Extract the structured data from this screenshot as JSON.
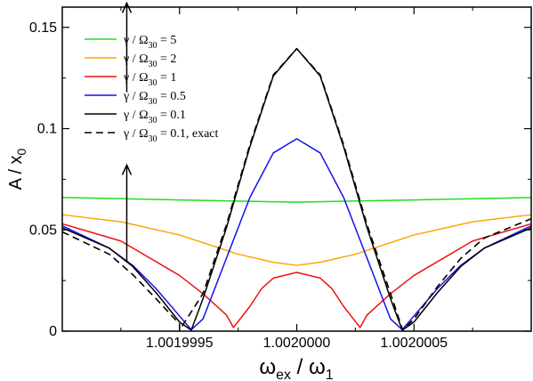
{
  "chart_data": {
    "type": "line",
    "xlabel": {
      "main": "ω",
      "sub": "ex",
      "mid": " / ω",
      "sub2": "1"
    },
    "ylabel": {
      "main": "A / x",
      "sub": "0"
    },
    "xlim": [
      1.001999,
      1.002001
    ],
    "ylim": [
      0,
      0.16
    ],
    "x_ticks": [
      {
        "value": 1.0019995,
        "label": "1.0019995"
      },
      {
        "value": 1.002,
        "label": "1.0020000"
      },
      {
        "value": 1.0020005,
        "label": "1.0020005"
      }
    ],
    "y_ticks": [
      {
        "value": 0,
        "label": "0"
      },
      {
        "value": 0.05,
        "label": "0.05"
      },
      {
        "value": 0.1,
        "label": "0.1"
      },
      {
        "value": 0.15,
        "label": "0.15"
      }
    ],
    "grid": false,
    "legend_position": "top-left",
    "arrows": [
      {
        "x": 1.001999275,
        "y_from": 0.034,
        "y_to": 0.082
      },
      {
        "x": 1.001999275,
        "y_from": 0.118,
        "y_to": 0.162
      }
    ],
    "series": [
      {
        "name": "γ / Ω30 = 5",
        "name_parts": [
          "γ / Ω",
          "30",
          " = 5"
        ],
        "color": "#22dd22",
        "dash": false,
        "points": [
          [
            1.001999,
            0.066
          ],
          [
            1.0019995,
            0.0648
          ],
          [
            1.002,
            0.0637
          ],
          [
            1.0020005,
            0.0648
          ],
          [
            1.002001,
            0.066
          ]
        ]
      },
      {
        "name": "γ / Ω30 = 2",
        "name_parts": [
          "γ / Ω",
          "30",
          " = 2"
        ],
        "color": "#ffa500",
        "dash": false,
        "points": [
          [
            1.001999,
            0.0575
          ],
          [
            1.00199925,
            0.054
          ],
          [
            1.0019995,
            0.0475
          ],
          [
            1.00199975,
            0.038
          ],
          [
            1.0019999,
            0.034
          ],
          [
            1.002,
            0.0325
          ],
          [
            1.0020001,
            0.034
          ],
          [
            1.00200025,
            0.038
          ],
          [
            1.0020005,
            0.0475
          ],
          [
            1.00200075,
            0.054
          ],
          [
            1.002001,
            0.0575
          ]
        ]
      },
      {
        "name": "γ / Ω30 = 1",
        "name_parts": [
          "γ / Ω",
          "30",
          " = 1"
        ],
        "color": "#ee1111",
        "dash": false,
        "points": [
          [
            1.001999,
            0.053
          ],
          [
            1.00199925,
            0.0445
          ],
          [
            1.0019995,
            0.0275
          ],
          [
            1.0019996,
            0.0185
          ],
          [
            1.0019997,
            0.008
          ],
          [
            1.00199973,
            0.0018
          ],
          [
            1.0019998,
            0.0122
          ],
          [
            1.00199985,
            0.021
          ],
          [
            1.0019999,
            0.0262
          ],
          [
            1.002,
            0.029
          ],
          [
            1.0020001,
            0.0262
          ],
          [
            1.00200015,
            0.021
          ],
          [
            1.0020002,
            0.0122
          ],
          [
            1.00200027,
            0.0018
          ],
          [
            1.0020003,
            0.008
          ],
          [
            1.0020004,
            0.0185
          ],
          [
            1.0020005,
            0.0275
          ],
          [
            1.00200075,
            0.0445
          ],
          [
            1.002001,
            0.053
          ]
        ]
      },
      {
        "name": "γ / Ω30 = 0.5",
        "name_parts": [
          "γ / Ω",
          "30",
          " = 0.5"
        ],
        "color": "#1111ee",
        "dash": false,
        "points": [
          [
            1.001999,
            0.052
          ],
          [
            1.0019992,
            0.041
          ],
          [
            1.0019993,
            0.0325
          ],
          [
            1.0019994,
            0.021
          ],
          [
            1.0019995,
            0.0075
          ],
          [
            1.00199955,
            0.0007
          ],
          [
            1.0019996,
            0.006
          ],
          [
            1.0019997,
            0.036
          ],
          [
            1.0019998,
            0.066
          ],
          [
            1.0019999,
            0.088
          ],
          [
            1.002,
            0.095
          ],
          [
            1.0020001,
            0.088
          ],
          [
            1.0020002,
            0.066
          ],
          [
            1.0020003,
            0.036
          ],
          [
            1.0020004,
            0.006
          ],
          [
            1.00200045,
            0.0007
          ],
          [
            1.0020005,
            0.0075
          ],
          [
            1.0020006,
            0.021
          ],
          [
            1.0020007,
            0.0325
          ],
          [
            1.0020008,
            0.041
          ],
          [
            1.002001,
            0.052
          ]
        ]
      },
      {
        "name": "γ / Ω30 = 0.1",
        "name_parts": [
          "γ / Ω",
          "30",
          " = 0.1"
        ],
        "color": "#000000",
        "dash": false,
        "points": [
          [
            1.001999,
            0.051
          ],
          [
            1.0019992,
            0.041
          ],
          [
            1.0019993,
            0.032
          ],
          [
            1.0019994,
            0.019
          ],
          [
            1.0019995,
            0.0045
          ],
          [
            1.00199955,
            0.0005
          ],
          [
            1.0019996,
            0.016
          ],
          [
            1.0019997,
            0.051
          ],
          [
            1.0019998,
            0.091
          ],
          [
            1.0019999,
            0.126
          ],
          [
            1.002,
            0.1395
          ],
          [
            1.0020001,
            0.126
          ],
          [
            1.0020002,
            0.091
          ],
          [
            1.0020003,
            0.051
          ],
          [
            1.0020004,
            0.016
          ],
          [
            1.00200045,
            0.0005
          ],
          [
            1.0020005,
            0.0045
          ],
          [
            1.0020006,
            0.019
          ],
          [
            1.0020007,
            0.032
          ],
          [
            1.0020008,
            0.041
          ],
          [
            1.002001,
            0.051
          ]
        ]
      },
      {
        "name": "γ / Ω30 = 0.1, exact",
        "name_parts": [
          "γ / Ω",
          "30",
          " = 0.1,  exact"
        ],
        "color": "#000000",
        "dash": true,
        "points": [
          [
            1.001999,
            0.049
          ],
          [
            1.0019992,
            0.038
          ],
          [
            1.0019993,
            0.028
          ],
          [
            1.0019994,
            0.016
          ],
          [
            1.0019995,
            0.0035
          ],
          [
            1.0019995,
            0.0005
          ],
          [
            1.0019996,
            0.0185
          ],
          [
            1.0019997,
            0.0525
          ],
          [
            1.0019998,
            0.092
          ],
          [
            1.0019999,
            0.1265
          ],
          [
            1.002,
            0.1395
          ],
          [
            1.0020001,
            0.1265
          ],
          [
            1.0020002,
            0.092
          ],
          [
            1.0020003,
            0.0525
          ],
          [
            1.0020004,
            0.0185
          ],
          [
            1.002000452,
            0.0005
          ],
          [
            1.0020005,
            0.006
          ],
          [
            1.0020006,
            0.022
          ],
          [
            1.0020007,
            0.036
          ],
          [
            1.0020008,
            0.046
          ],
          [
            1.002001,
            0.0555
          ]
        ]
      }
    ]
  }
}
